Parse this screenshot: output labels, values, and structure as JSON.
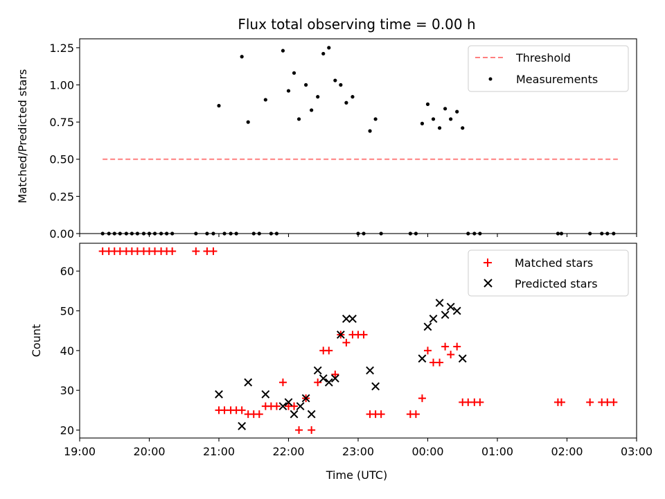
{
  "title": "Flux total observing time = 0.00 h",
  "chart_data": [
    {
      "type": "scatter",
      "panel": "top",
      "ylabel": "Matched/Predicted stars",
      "xlabel": "",
      "xlim": [
        19.0,
        27.0
      ],
      "ylim": [
        0.0,
        1.31
      ],
      "yticks": [
        0.0,
        0.25,
        0.5,
        0.75,
        1.0,
        1.25
      ],
      "ytick_labels": [
        "0.00",
        "0.25",
        "0.50",
        "0.75",
        "1.00",
        "1.25"
      ],
      "legend_position": "upper right",
      "grid": false,
      "series": [
        {
          "name": "Threshold",
          "kind": "dashed-line",
          "color": "#ff7f7f",
          "x": [
            19.33,
            26.73
          ],
          "y": [
            0.5,
            0.5
          ]
        },
        {
          "name": "Measurements",
          "kind": "dots",
          "color": "#000000",
          "points": [
            [
              19.33,
              0
            ],
            [
              19.42,
              0
            ],
            [
              19.5,
              0
            ],
            [
              19.58,
              0
            ],
            [
              19.67,
              0
            ],
            [
              19.75,
              0
            ],
            [
              19.83,
              0
            ],
            [
              19.92,
              0
            ],
            [
              20.0,
              0
            ],
            [
              20.08,
              0
            ],
            [
              20.17,
              0
            ],
            [
              20.25,
              0
            ],
            [
              20.33,
              0
            ],
            [
              20.67,
              0
            ],
            [
              20.83,
              0
            ],
            [
              20.92,
              0
            ],
            [
              21.08,
              0
            ],
            [
              21.17,
              0
            ],
            [
              21.25,
              0
            ],
            [
              21.5,
              0
            ],
            [
              21.58,
              0
            ],
            [
              21.75,
              0
            ],
            [
              21.83,
              0
            ],
            [
              23.0,
              0
            ],
            [
              23.08,
              0
            ],
            [
              23.33,
              0
            ],
            [
              23.75,
              0
            ],
            [
              23.83,
              0
            ],
            [
              24.58,
              0
            ],
            [
              24.67,
              0
            ],
            [
              24.75,
              0
            ],
            [
              25.87,
              0
            ],
            [
              25.92,
              0
            ],
            [
              26.33,
              0
            ],
            [
              26.5,
              0
            ],
            [
              26.58,
              0
            ],
            [
              26.67,
              0
            ],
            [
              21.0,
              0.86
            ],
            [
              21.33,
              1.19
            ],
            [
              21.42,
              0.75
            ],
            [
              21.67,
              0.9
            ],
            [
              21.92,
              1.23
            ],
            [
              22.0,
              0.96
            ],
            [
              22.08,
              1.08
            ],
            [
              22.15,
              0.77
            ],
            [
              22.25,
              1.0
            ],
            [
              22.33,
              0.83
            ],
            [
              22.42,
              0.92
            ],
            [
              22.5,
              1.21
            ],
            [
              22.58,
              1.25
            ],
            [
              22.67,
              1.03
            ],
            [
              22.75,
              1.0
            ],
            [
              22.83,
              0.88
            ],
            [
              22.92,
              0.92
            ],
            [
              23.17,
              0.69
            ],
            [
              23.25,
              0.77
            ],
            [
              23.92,
              0.74
            ],
            [
              24.0,
              0.87
            ],
            [
              24.08,
              0.77
            ],
            [
              24.17,
              0.71
            ],
            [
              24.25,
              0.84
            ],
            [
              24.33,
              0.77
            ],
            [
              24.42,
              0.82
            ],
            [
              24.5,
              0.71
            ]
          ]
        }
      ]
    },
    {
      "type": "scatter",
      "panel": "bottom",
      "ylabel": "Count",
      "xlabel": "Time (UTC)",
      "xlim": [
        19.0,
        27.0
      ],
      "ylim": [
        18,
        67
      ],
      "yticks": [
        20,
        30,
        40,
        50,
        60
      ],
      "ytick_labels": [
        "20",
        "30",
        "40",
        "50",
        "60"
      ],
      "xticks": [
        19,
        20,
        21,
        22,
        23,
        24,
        25,
        26,
        27
      ],
      "xtick_labels": [
        "19:00",
        "20:00",
        "21:00",
        "22:00",
        "23:00",
        "00:00",
        "01:00",
        "02:00",
        "03:00"
      ],
      "legend_position": "upper right",
      "grid": false,
      "series": [
        {
          "name": "Matched stars",
          "marker": "plus",
          "color": "#ff0000",
          "points": [
            [
              19.33,
              65
            ],
            [
              19.42,
              65
            ],
            [
              19.5,
              65
            ],
            [
              19.58,
              65
            ],
            [
              19.67,
              65
            ],
            [
              19.75,
              65
            ],
            [
              19.83,
              65
            ],
            [
              19.92,
              65
            ],
            [
              20.0,
              65
            ],
            [
              20.08,
              65
            ],
            [
              20.17,
              65
            ],
            [
              20.25,
              65
            ],
            [
              20.33,
              65
            ],
            [
              20.67,
              65
            ],
            [
              20.83,
              65
            ],
            [
              20.92,
              65
            ],
            [
              21.0,
              25
            ],
            [
              21.08,
              25
            ],
            [
              21.17,
              25
            ],
            [
              21.25,
              25
            ],
            [
              21.33,
              25
            ],
            [
              21.42,
              24
            ],
            [
              21.5,
              24
            ],
            [
              21.58,
              24
            ],
            [
              21.67,
              26
            ],
            [
              21.75,
              26
            ],
            [
              21.83,
              26
            ],
            [
              21.92,
              32
            ],
            [
              22.0,
              26
            ],
            [
              22.08,
              26
            ],
            [
              22.15,
              20
            ],
            [
              22.25,
              28
            ],
            [
              22.33,
              20
            ],
            [
              22.42,
              32
            ],
            [
              22.5,
              40
            ],
            [
              22.58,
              40
            ],
            [
              22.67,
              34
            ],
            [
              22.75,
              44
            ],
            [
              22.83,
              42
            ],
            [
              22.92,
              44
            ],
            [
              23.0,
              44
            ],
            [
              23.08,
              44
            ],
            [
              23.17,
              24
            ],
            [
              23.25,
              24
            ],
            [
              23.33,
              24
            ],
            [
              23.75,
              24
            ],
            [
              23.83,
              24
            ],
            [
              23.92,
              28
            ],
            [
              24.0,
              40
            ],
            [
              24.08,
              37
            ],
            [
              24.17,
              37
            ],
            [
              24.25,
              41
            ],
            [
              24.33,
              39
            ],
            [
              24.42,
              41
            ],
            [
              24.5,
              27
            ],
            [
              24.58,
              27
            ],
            [
              24.67,
              27
            ],
            [
              24.75,
              27
            ],
            [
              25.87,
              27
            ],
            [
              25.92,
              27
            ],
            [
              26.33,
              27
            ],
            [
              26.5,
              27
            ],
            [
              26.58,
              27
            ],
            [
              26.67,
              27
            ]
          ]
        },
        {
          "name": "Predicted stars",
          "marker": "x",
          "color": "#000000",
          "points": [
            [
              21.0,
              29
            ],
            [
              21.33,
              21
            ],
            [
              21.42,
              32
            ],
            [
              21.67,
              29
            ],
            [
              21.92,
              26
            ],
            [
              22.0,
              27
            ],
            [
              22.08,
              24
            ],
            [
              22.17,
              26
            ],
            [
              22.25,
              28
            ],
            [
              22.33,
              24
            ],
            [
              22.42,
              35
            ],
            [
              22.5,
              33
            ],
            [
              22.58,
              32
            ],
            [
              22.67,
              33
            ],
            [
              22.75,
              44
            ],
            [
              22.83,
              48
            ],
            [
              22.92,
              48
            ],
            [
              23.17,
              35
            ],
            [
              23.25,
              31
            ],
            [
              23.92,
              38
            ],
            [
              24.0,
              46
            ],
            [
              24.08,
              48
            ],
            [
              24.17,
              52
            ],
            [
              24.25,
              49
            ],
            [
              24.33,
              51
            ],
            [
              24.42,
              50
            ],
            [
              24.5,
              38
            ]
          ]
        }
      ]
    }
  ]
}
